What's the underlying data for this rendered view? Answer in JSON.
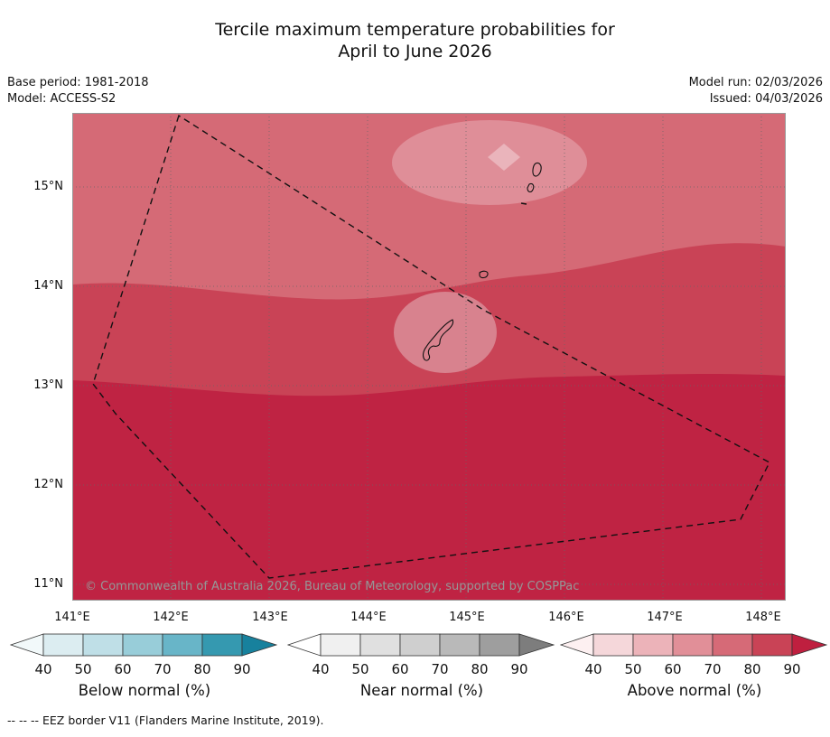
{
  "title": {
    "line1": "Tercile maximum temperature probabilities for",
    "line2": "April to June 2026"
  },
  "meta": {
    "base_period": "Base period: 1981-2018",
    "model": "Model: ACCESS-S2",
    "model_run": "Model run: 02/03/2026",
    "issued": "Issued: 04/03/2026"
  },
  "map": {
    "x_ticks": [
      "141°E",
      "142°E",
      "143°E",
      "144°E",
      "145°E",
      "146°E",
      "147°E",
      "148°E"
    ],
    "y_ticks": [
      "15°N",
      "14°N",
      "13°N",
      "12°N",
      "11°N"
    ],
    "copyright": "© Commonwealth of Australia 2026, Bureau of Meteorology, supported by COSPPac"
  },
  "map_colors": {
    "base": "#d56a76",
    "band_mid": "#c94356",
    "band_deep": "#bf2343",
    "blob_light": "#df8e98",
    "diamond": "#eab4bb",
    "guam_patch": "#d8828e",
    "grid": "#666666",
    "frame": "#999999",
    "eez_border": "#111111",
    "island_outline": "#111111",
    "copyright_text": "#979797"
  },
  "legends": [
    {
      "title": "Below normal (%)",
      "ticks": [
        "40",
        "50",
        "60",
        "70",
        "80",
        "90"
      ],
      "colors": [
        "#f2f9fa",
        "#dcedf1",
        "#bfdfe7",
        "#98cdd9",
        "#68b5c8",
        "#3599b0",
        "#17819d"
      ]
    },
    {
      "title": "Near normal (%)",
      "ticks": [
        "40",
        "50",
        "60",
        "70",
        "80",
        "90"
      ],
      "colors": [
        "#ffffff",
        "#f0f0f0",
        "#e0e0e0",
        "#cfcfcf",
        "#b9b9b9",
        "#9e9e9e",
        "#7d7d7d"
      ]
    },
    {
      "title": "Above normal (%)",
      "ticks": [
        "40",
        "50",
        "60",
        "70",
        "80",
        "90"
      ],
      "colors": [
        "#fdf0f1",
        "#f5d7da",
        "#ecb3b9",
        "#e18f98",
        "#d66a77",
        "#c94356",
        "#bf1f3f"
      ]
    }
  ],
  "footnote": "-- -- --  EEZ border V11 (Flanders Marine Institute, 2019)."
}
